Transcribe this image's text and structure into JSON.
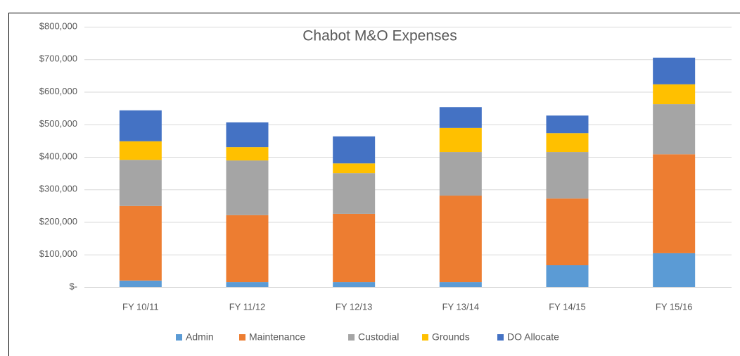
{
  "chart_data": {
    "type": "stacked_bar",
    "title": "Chabot M&O Expenses",
    "categories": [
      "FY 10/11",
      "FY 11/12",
      "FY 12/13",
      "FY 13/14",
      "FY 14/15",
      "FY 15/16"
    ],
    "series": [
      {
        "name": "Admin",
        "color": "#5b9bd5",
        "values": [
          20000,
          15000,
          15000,
          15000,
          67000,
          104000
        ]
      },
      {
        "name": "Maintenance",
        "color": "#ed7d31",
        "values": [
          229000,
          206000,
          210000,
          266000,
          205000,
          304000
        ]
      },
      {
        "name": "Custodial",
        "color": "#a5a5a5",
        "values": [
          142000,
          168000,
          125000,
          134000,
          143000,
          154000
        ]
      },
      {
        "name": "Grounds",
        "color": "#ffc000",
        "values": [
          57000,
          41000,
          30000,
          74000,
          58000,
          61000
        ]
      },
      {
        "name": "DO Allocate",
        "color": "#4472c4",
        "values": [
          95000,
          76000,
          83000,
          64000,
          54000,
          82000
        ]
      }
    ],
    "ylim": [
      0,
      800000
    ],
    "yticks": [
      {
        "value": 0,
        "label": "$-"
      },
      {
        "value": 100000,
        "label": "$100,000"
      },
      {
        "value": 200000,
        "label": "$200,000"
      },
      {
        "value": 300000,
        "label": "$300,000"
      },
      {
        "value": 400000,
        "label": "$400,000"
      },
      {
        "value": 500000,
        "label": "$500,000"
      },
      {
        "value": 600000,
        "label": "$600,000"
      },
      {
        "value": 700000,
        "label": "$700,000"
      },
      {
        "value": 800000,
        "label": "$800,000"
      }
    ],
    "grid": true,
    "legend": "bottom"
  }
}
